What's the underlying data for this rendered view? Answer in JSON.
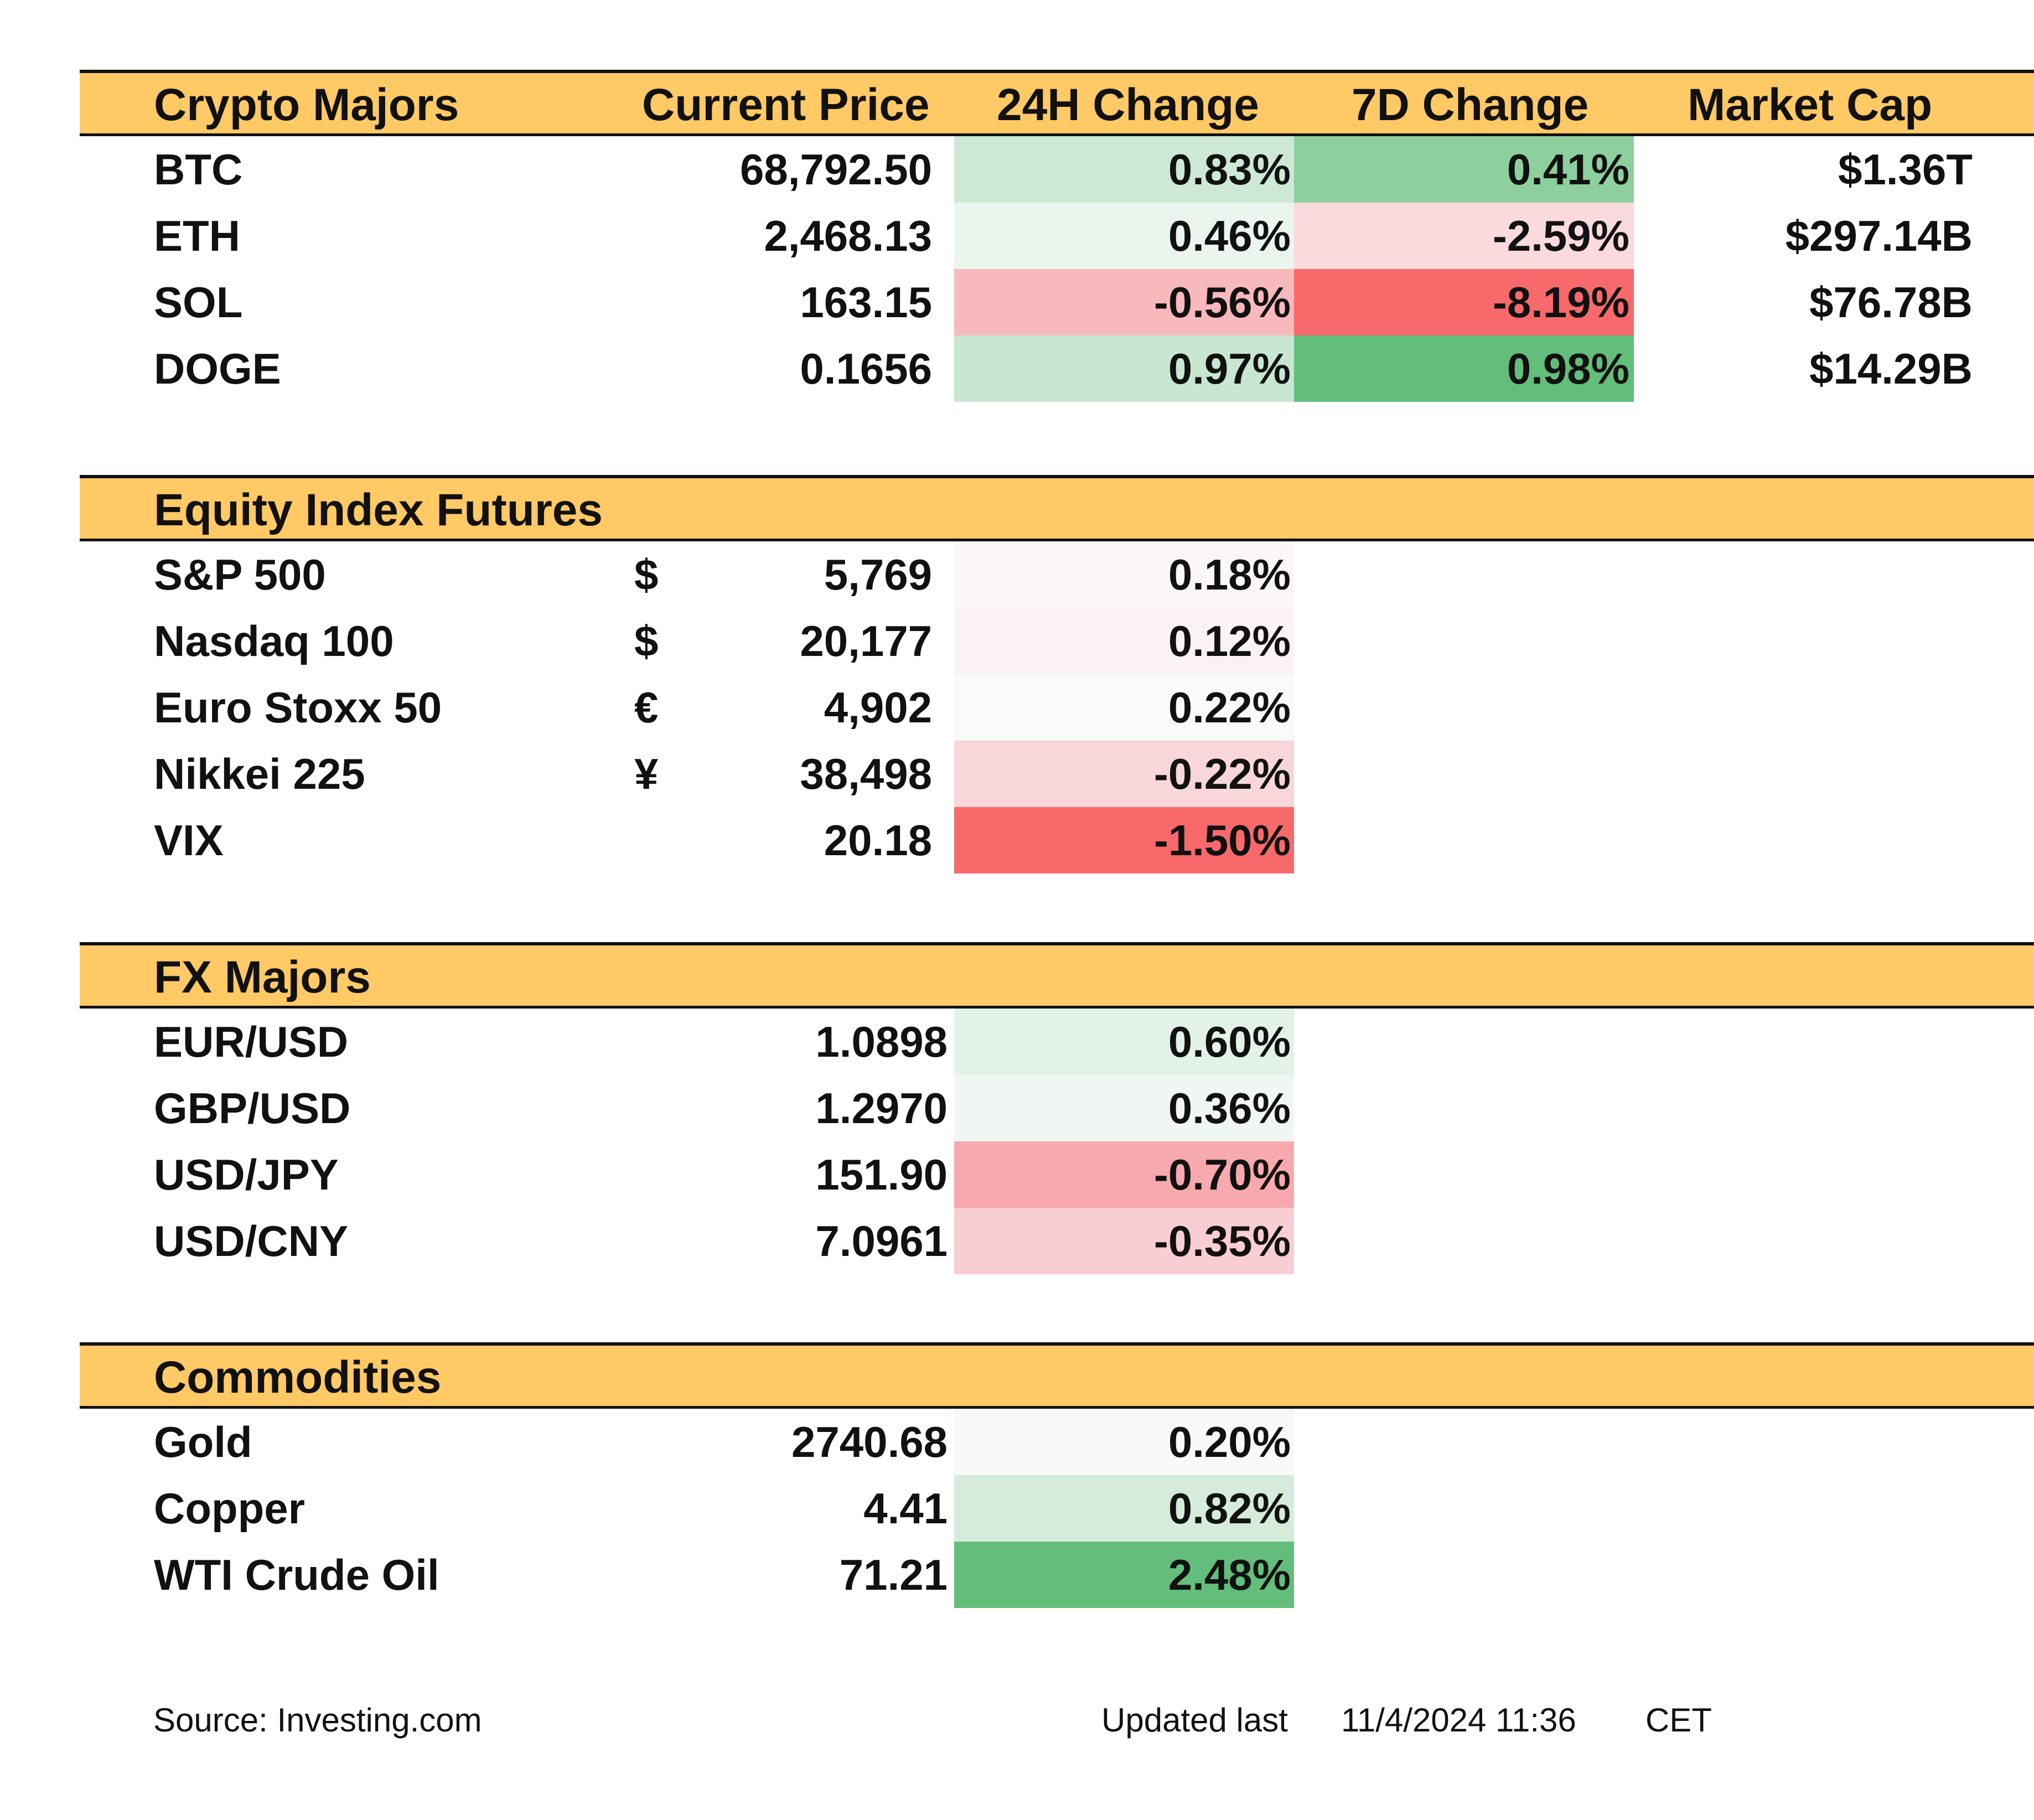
{
  "crypto": {
    "header": {
      "name": "Crypto Majors",
      "price": "Current Price",
      "chg24": "24H Change",
      "chg7d": "7D Change",
      "mcap": "Market Cap"
    },
    "rows": [
      {
        "name": "BTC",
        "price": "68,792.50",
        "chg24": "0.83%",
        "chg24_color": "#CDE9D6",
        "chg7d": "0.41%",
        "chg7d_color": "#8ECF9E",
        "mcap": "$1.36T"
      },
      {
        "name": "ETH",
        "price": "2,468.13",
        "chg24": "0.46%",
        "chg24_color": "#EAF5EE",
        "chg7d": "-2.59%",
        "chg7d_color": "#FADADD",
        "mcap": "$297.14B"
      },
      {
        "name": "SOL",
        "price": "163.15",
        "chg24": "-0.56%",
        "chg24_color": "#F8B9BD",
        "chg7d": "-8.19%",
        "chg7d_color": "#F8696B",
        "mcap": "$76.78B"
      },
      {
        "name": "DOGE",
        "price": "0.1656",
        "chg24": "0.97%",
        "chg24_color": "#C7E7D0",
        "chg7d": "0.98%",
        "chg7d_color": "#63BE7B",
        "mcap": "$14.29B"
      }
    ]
  },
  "equity": {
    "header": {
      "name": "Equity Index Futures"
    },
    "rows": [
      {
        "name": "S&P 500",
        "currency": "$",
        "price": "5,769",
        "chg24": "0.18%",
        "chg24_color": "#FBF7F9"
      },
      {
        "name": "Nasdaq 100",
        "currency": "$",
        "price": "20,177",
        "chg24": "0.12%",
        "chg24_color": "#FBF2F3"
      },
      {
        "name": "Euro Stoxx 50",
        "currency": "€",
        "price": "4,902",
        "chg24": "0.22%",
        "chg24_color": "#F8FBF9"
      },
      {
        "name": "Nikkei 225",
        "currency": "¥",
        "price": "38,498",
        "chg24": "-0.22%",
        "chg24_color": "#F9D6D9"
      },
      {
        "name": "VIX",
        "currency": "",
        "price": "20.18",
        "chg24": "-1.50%",
        "chg24_color": "#F8696B"
      }
    ]
  },
  "fx": {
    "header": {
      "name": "FX Majors"
    },
    "rows": [
      {
        "name": "EUR/USD",
        "price": "1.0898",
        "chg24": "0.60%",
        "chg24_color": "#E2F2E7"
      },
      {
        "name": "GBP/USD",
        "price": "1.2970",
        "chg24": "0.36%",
        "chg24_color": "#F0F7F2"
      },
      {
        "name": "USD/JPY",
        "price": "151.90",
        "chg24": "-0.70%",
        "chg24_color": "#F8A9AE"
      },
      {
        "name": "USD/CNY",
        "price": "7.0961",
        "chg24": "-0.35%",
        "chg24_color": "#F9CED2"
      }
    ]
  },
  "commodities": {
    "header": {
      "name": "Commodities"
    },
    "rows": [
      {
        "name": "Gold",
        "price": "2740.68",
        "chg24": "0.20%",
        "chg24_color": "#F7FAF8"
      },
      {
        "name": "Copper",
        "price": "4.41",
        "chg24": "0.82%",
        "chg24_color": "#D5ECDC"
      },
      {
        "name": "WTI Crude Oil",
        "price": "71.21",
        "chg24": "2.48%",
        "chg24_color": "#63BE7B"
      }
    ]
  },
  "footer": {
    "source": "Source: Investing.com",
    "updated_label": "Updated last",
    "updated_value": "11/4/2024 11:36",
    "timezone": "CET"
  },
  "colors": {
    "header_fill": "#FFC966",
    "border": "#111111"
  }
}
